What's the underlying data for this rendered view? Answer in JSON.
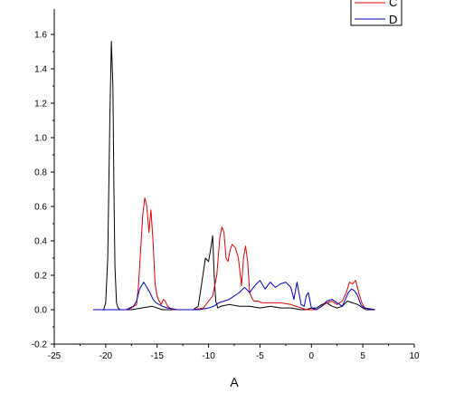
{
  "chart_data": {
    "type": "line",
    "xlabel": "A",
    "ylabel": "",
    "xlim": [
      -25,
      10
    ],
    "ylim": [
      -0.2,
      1.7
    ],
    "x_ticks": [
      -25,
      -20,
      -15,
      -10,
      -5,
      0,
      5,
      10
    ],
    "y_ticks": [
      -0.2,
      0.0,
      0.2,
      0.4,
      0.6,
      0.8,
      1.0,
      1.2,
      1.4,
      1.6
    ],
    "x_tick_labels": [
      "-25",
      "-20",
      "-15",
      "-10",
      "-5",
      "0",
      "5",
      "10"
    ],
    "y_tick_labels": [
      "-0.2",
      "0.0",
      "0.2",
      "0.4",
      "0.6",
      "0.8",
      "1.0",
      "1.2",
      "1.4",
      "1.6"
    ],
    "grid": false,
    "legend_position": "top-right",
    "legend": [
      {
        "label": "C",
        "color": "#e00000"
      },
      {
        "label": "D",
        "color": "#0000c8"
      }
    ],
    "series": [
      {
        "color": "#000000",
        "x": [
          -21.2,
          -20.2,
          -20.0,
          -19.8,
          -19.6,
          -19.45,
          -19.3,
          -19.2,
          -19.1,
          -18.95,
          -18.8,
          -18.6,
          -18.3,
          -17.5,
          -16.5,
          -15.5,
          -14.5,
          -13.5,
          -12.5,
          -11.5,
          -11.0,
          -10.6,
          -10.3,
          -10.0,
          -9.8,
          -9.6,
          -9.45,
          -9.3,
          -9.1,
          -8.8,
          -8.0,
          -7.0,
          -6.0,
          -5.0,
          -4.0,
          -3.0,
          -2.0,
          -1.0,
          -0.5,
          0.0,
          0.5,
          1.0,
          1.5,
          2.0,
          2.5,
          3.0,
          3.5,
          4.0,
          4.5,
          5.0,
          5.3,
          6.2
        ],
        "values": [
          0.0,
          0.0,
          0.04,
          0.3,
          1.1,
          1.56,
          1.3,
          0.7,
          0.25,
          0.04,
          0.01,
          0.0,
          0.0,
          0.0,
          0.01,
          0.02,
          0.0,
          0.0,
          0.0,
          0.0,
          0.02,
          0.18,
          0.3,
          0.28,
          0.35,
          0.43,
          0.2,
          0.05,
          0.01,
          0.02,
          0.03,
          0.02,
          0.02,
          0.01,
          0.02,
          0.01,
          0.01,
          0.0,
          0.0,
          0.01,
          0.01,
          0.03,
          0.04,
          0.02,
          0.01,
          0.02,
          0.05,
          0.04,
          0.03,
          0.01,
          0.0,
          0.0
        ]
      },
      {
        "name": "C",
        "color": "#e00000",
        "x": [
          -21.2,
          -18.0,
          -17.5,
          -17.0,
          -16.8,
          -16.6,
          -16.4,
          -16.2,
          -16.0,
          -15.8,
          -15.6,
          -15.4,
          -15.2,
          -15.0,
          -14.8,
          -14.6,
          -14.4,
          -14.2,
          -14.0,
          -13.5,
          -12.5,
          -11.5,
          -10.5,
          -10.0,
          -9.6,
          -9.2,
          -8.9,
          -8.7,
          -8.5,
          -8.3,
          -8.1,
          -7.9,
          -7.7,
          -7.4,
          -7.1,
          -6.8,
          -6.6,
          -6.4,
          -6.2,
          -6.0,
          -5.8,
          -5.6,
          -5.4,
          -5.2,
          -4.8,
          -4.0,
          -3.0,
          -2.0,
          -1.5,
          -1.0,
          -0.5,
          0.0,
          0.5,
          1.0,
          1.5,
          2.0,
          2.5,
          3.0,
          3.4,
          3.7,
          4.0,
          4.3,
          4.6,
          4.9,
          5.2,
          6.2
        ],
        "values": [
          0.0,
          0.0,
          0.01,
          0.03,
          0.15,
          0.35,
          0.55,
          0.65,
          0.6,
          0.45,
          0.58,
          0.4,
          0.15,
          0.08,
          0.05,
          0.03,
          0.06,
          0.05,
          0.02,
          0.0,
          0.0,
          0.0,
          0.01,
          0.05,
          0.08,
          0.2,
          0.42,
          0.48,
          0.45,
          0.3,
          0.28,
          0.35,
          0.38,
          0.36,
          0.3,
          0.14,
          0.3,
          0.37,
          0.28,
          0.1,
          0.07,
          0.05,
          0.05,
          0.05,
          0.04,
          0.04,
          0.04,
          0.03,
          0.02,
          0.01,
          0.0,
          0.0,
          0.0,
          0.02,
          0.04,
          0.05,
          0.03,
          0.05,
          0.1,
          0.16,
          0.15,
          0.17,
          0.1,
          0.04,
          0.01,
          0.0
        ]
      },
      {
        "name": "D",
        "color": "#0000c8",
        "x": [
          -21.2,
          -18.0,
          -17.3,
          -17.0,
          -16.7,
          -16.5,
          -16.3,
          -16.1,
          -15.9,
          -15.7,
          -15.4,
          -15.1,
          -14.8,
          -14.5,
          -14.0,
          -13.0,
          -12.0,
          -11.0,
          -10.0,
          -9.5,
          -9.0,
          -8.5,
          -8.0,
          -7.5,
          -7.0,
          -6.5,
          -6.0,
          -5.5,
          -5.0,
          -4.5,
          -4.0,
          -3.5,
          -3.0,
          -2.5,
          -2.0,
          -1.7,
          -1.4,
          -1.0,
          -0.7,
          -0.5,
          -0.3,
          0.0,
          0.5,
          1.0,
          1.5,
          2.0,
          2.5,
          3.0,
          3.3,
          3.6,
          3.9,
          4.2,
          4.5,
          4.8,
          5.1,
          6.2
        ],
        "values": [
          0.0,
          0.0,
          0.02,
          0.05,
          0.12,
          0.14,
          0.16,
          0.14,
          0.12,
          0.1,
          0.06,
          0.04,
          0.03,
          0.02,
          0.01,
          0.0,
          0.0,
          0.0,
          0.01,
          0.02,
          0.04,
          0.05,
          0.06,
          0.08,
          0.1,
          0.13,
          0.1,
          0.14,
          0.17,
          0.12,
          0.16,
          0.13,
          0.15,
          0.16,
          0.13,
          0.06,
          0.16,
          0.03,
          0.02,
          0.08,
          0.1,
          0.01,
          0.0,
          0.02,
          0.05,
          0.06,
          0.04,
          0.02,
          0.06,
          0.1,
          0.12,
          0.11,
          0.08,
          0.03,
          0.01,
          0.0
        ]
      }
    ]
  }
}
